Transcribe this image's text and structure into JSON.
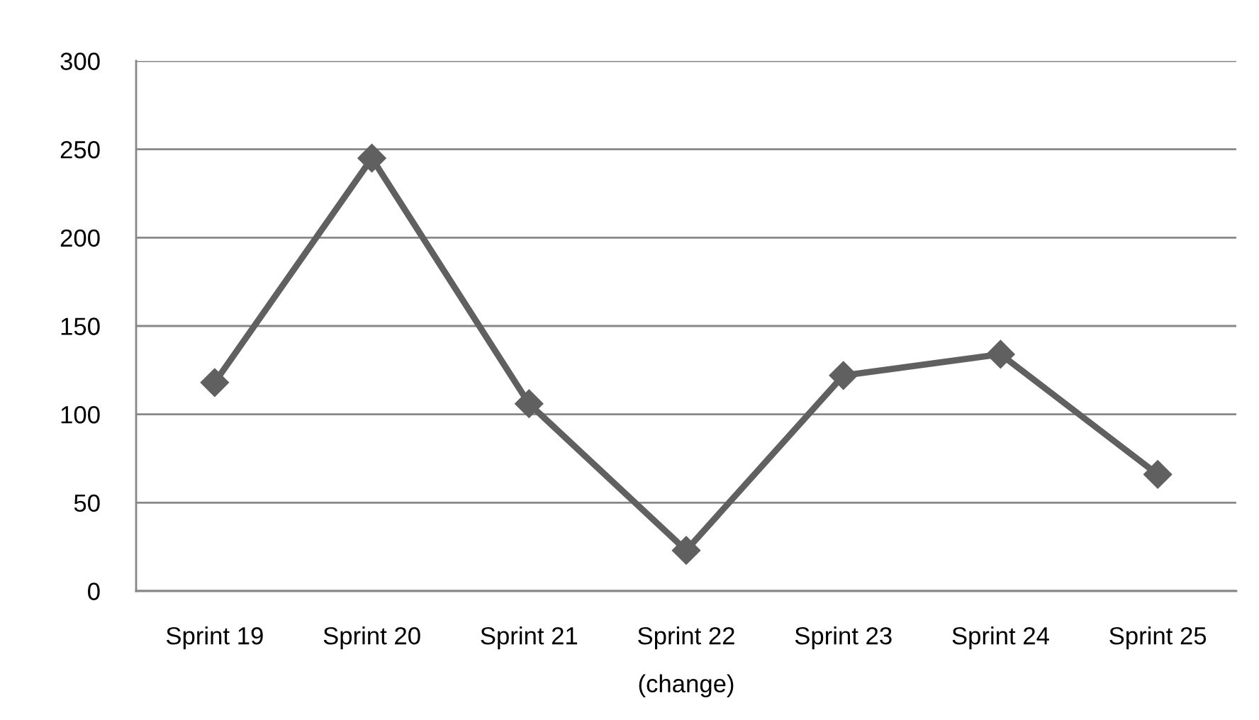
{
  "chart_data": {
    "type": "line",
    "categories": [
      "Sprint 19",
      "Sprint 20",
      "Sprint 21",
      "Sprint 22\n(change)",
      "Sprint 23",
      "Sprint 24",
      "Sprint 25"
    ],
    "series": [
      {
        "color": "#606060",
        "values": [
          118,
          245,
          106,
          23,
          122,
          134,
          66
        ]
      }
    ],
    "ylim": [
      0,
      300
    ],
    "yticks": [
      0,
      50,
      100,
      150,
      200,
      250,
      300
    ],
    "grid": "y",
    "marker": "diamond",
    "line_style": "solid"
  }
}
